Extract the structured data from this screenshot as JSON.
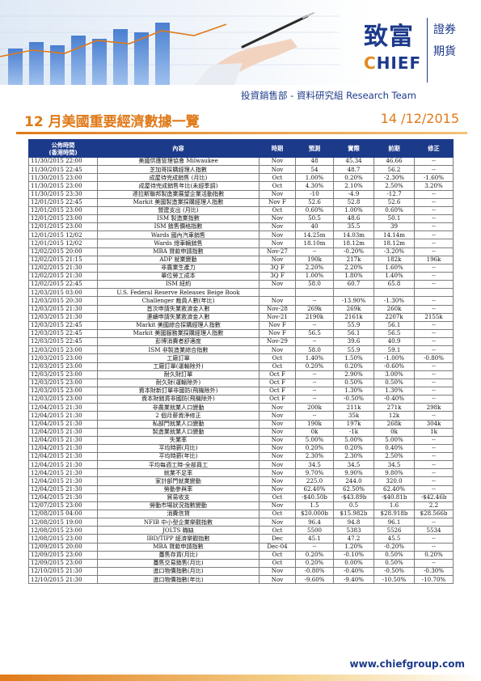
{
  "brand": {
    "logo_zh": "致富",
    "logo_en": "CHIEF",
    "logo_en_first": "C",
    "logo_en_rest": "HIEF",
    "side_line1": "證券",
    "side_line2": "期貨"
  },
  "header": {
    "department": "投資銷售部 - 資料研究組 Research Team",
    "title": "12 月美國重要經濟數據一覽",
    "date": "14 /12/2015"
  },
  "table": {
    "headers": {
      "time_line1": "公佈時間",
      "time_line2": "(香港時間)",
      "indicator": "內容",
      "period": "時期",
      "forecast": "預測",
      "actual": "實際",
      "previous": "前期",
      "revised": "修正"
    },
    "rows": [
      [
        "11/30/2015 22:00",
        "美國供應管理協會 Milwaukee",
        "Nov",
        "48",
        "45.34",
        "46.66",
        "--"
      ],
      [
        "11/30/2015 22:45",
        "芝加哥採購經理人指數",
        "Nov",
        "54",
        "48.7",
        "56.2",
        "--"
      ],
      [
        "11/30/2015 23:00",
        "成屋待完成銷售 (月比)",
        "Oct",
        "1.00%",
        "0.20%",
        "-2.30%",
        "-1.60%"
      ],
      [
        "11/30/2015 23:00",
        "成屋待完成銷售年比(未經季調)",
        "Oct",
        "4.30%",
        "2.10%",
        "2.50%",
        "3.20%"
      ],
      [
        "11/30/2015 23:30",
        "達拉斯聯邦製造業展望企業活動指數",
        "Nov",
        "-10",
        "-4.9",
        "-12.7",
        "--"
      ],
      [
        "12/01/2015 22:45",
        "Markit 美國製造業採購經理人指數",
        "Nov F",
        "52.6",
        "52.8",
        "52.6",
        "--"
      ],
      [
        "12/01/2015 23:00",
        "營建支出 (月比)",
        "Oct",
        "0.60%",
        "1.00%",
        "0.60%",
        "--"
      ],
      [
        "12/01/2015 23:00",
        "ISM 製造業指數",
        "Nov",
        "50.5",
        "48.6",
        "50.1",
        "--"
      ],
      [
        "12/01/2015 23:00",
        "ISM 銷售價格指數",
        "Nov",
        "40",
        "35.5",
        "39",
        "--"
      ],
      [
        "12/01/2015 12/02",
        "Wards 國內汽車銷售",
        "Nov",
        "14.25m",
        "14.03m",
        "14.14m",
        "--"
      ],
      [
        "12/01/2015 12/02",
        "Wards 總車輛銷售",
        "Nov",
        "18.10m",
        "18.12m",
        "18.12m",
        "--"
      ],
      [
        "12/02/2015 20:00",
        "MBA 貸款申請指數",
        "Nov-27",
        "--",
        "-0.20%",
        "-3.20%",
        "--"
      ],
      [
        "12/02/2015 21:15",
        "ADP 就業變動",
        "Nov",
        "190k",
        "217k",
        "182k",
        "196k"
      ],
      [
        "12/02/2015 21:30",
        "非農業生產力",
        "3Q F",
        "2.20%",
        "2.20%",
        "1.60%",
        "--"
      ],
      [
        "12/02/2015 21:30",
        "單位勞工成本",
        "3Q F",
        "1.00%",
        "1.80%",
        "1.40%",
        "--"
      ],
      [
        "12/02/2015 22:45",
        "ISM 紐約",
        "Nov",
        "58.0",
        "60.7",
        "65.8",
        "--"
      ],
      [
        "12/03/2015 03:00",
        "U.S. Federal Reserve Releases Beige Book",
        "",
        "",
        "",
        "",
        ""
      ],
      [
        "12/03/2015 20:30",
        "Challenger 裁員人數(年比)",
        "Nov",
        "--",
        "-13.90%",
        "-1.30%",
        "--"
      ],
      [
        "12/03/2015 21:30",
        "首次申請失業救濟金人數",
        "Nov-28",
        "269k",
        "269k",
        "260k",
        "--"
      ],
      [
        "12/03/2015 21:30",
        "連續申請失業救濟金人數",
        "Nov-21",
        "2190k",
        "2161k",
        "2207k",
        "2155k"
      ],
      [
        "12/03/2015 22:45",
        "Markit 美國綜合採購經理人指數",
        "Nov F",
        "--",
        "55.9",
        "56.1",
        "--"
      ],
      [
        "12/03/2015 22:45",
        "Markit 美國服務業採購經理人指數",
        "Nov F",
        "56.5",
        "56.1",
        "56.5",
        "--"
      ],
      [
        "12/03/2015 22:45",
        "彭博消費者舒適度",
        "Nov-29",
        "--",
        "39.6",
        "40.9",
        "--"
      ],
      [
        "12/03/2015 23:00",
        "ISM 非製造業綜合指數",
        "Nov",
        "58.0",
        "55.9",
        "59.1",
        "--"
      ],
      [
        "12/03/2015 23:00",
        "工廠訂單",
        "Oct",
        "1.40%",
        "1.50%",
        "-1.00%",
        "-0.80%"
      ],
      [
        "12/03/2015 23:00",
        "工廠訂單(運輸除外)",
        "Oct",
        "0.20%",
        "0.20%",
        "-0.60%",
        "--"
      ],
      [
        "12/03/2015 23:00",
        "耐久財訂單",
        "Oct F",
        "--",
        "2.90%",
        "3.00%",
        "--"
      ],
      [
        "12/03/2015 23:00",
        "耐久財(運輸除外)",
        "Oct F",
        "--",
        "0.50%",
        "0.50%",
        "--"
      ],
      [
        "12/03/2015 23:00",
        "資本財新訂單非國防(飛機除外)",
        "Oct F",
        "--",
        "1.30%",
        "1.30%",
        "--"
      ],
      [
        "12/03/2015 23:00",
        "資本財銷貨非國防(飛機除外)",
        "Oct F",
        "--",
        "-0.50%",
        "-0.40%",
        "--"
      ],
      [
        "12/04/2015 21:30",
        "非農業就業人口變動",
        "Nov",
        "200k",
        "211k",
        "271k",
        "298k"
      ],
      [
        "12/04/2015 21:30",
        "2 個月薪資淨修正",
        "Nov",
        "--",
        "35k",
        "12k",
        "--"
      ],
      [
        "12/04/2015 21:30",
        "私部門就業人口變動",
        "Nov",
        "190k",
        "197k",
        "268k",
        "304k"
      ],
      [
        "12/04/2015 21:30",
        "製造業就業人口變動",
        "Nov",
        "0k",
        "-1k",
        "0k",
        "1k"
      ],
      [
        "12/04/2015 21:30",
        "失業率",
        "Nov",
        "5.00%",
        "5.00%",
        "5.00%",
        "--"
      ],
      [
        "12/04/2015 21:30",
        "平均時薪(月比)",
        "Nov",
        "0.20%",
        "0.20%",
        "0.40%",
        "--"
      ],
      [
        "12/04/2015 21:30",
        "平均時薪(年比)",
        "Nov",
        "2.30%",
        "2.30%",
        "2.50%",
        "--"
      ],
      [
        "12/04/2015 21:30",
        "平均每週工時-全部員工",
        "Nov",
        "34.5",
        "34.5",
        "34.5",
        "--"
      ],
      [
        "12/04/2015 21:30",
        "就業不足率",
        "Nov",
        "9.70%",
        "9.90%",
        "9.80%",
        "--"
      ],
      [
        "12/04/2015 21:30",
        "家計部門就業變動",
        "Nov",
        "225.0",
        "244.0",
        "320.0",
        "--"
      ],
      [
        "12/04/2015 21:30",
        "勞動參與率",
        "Nov",
        "62.40%",
        "62.50%",
        "62.40%",
        "--"
      ],
      [
        "12/04/2015 21:30",
        "貿易收支",
        "Oct",
        "-$40.50b",
        "-$43.89b",
        "-$40.81b",
        "-$42.46b"
      ],
      [
        "12/07/2015 23:00",
        "勞動市場狀況指數變動",
        "Nov",
        "1.5",
        "0.5",
        "1.6",
        "2.2"
      ],
      [
        "12/08/2015 04:00",
        "消費信貸",
        "Oct",
        "$20.000b",
        "$15.982b",
        "$28.918b",
        "$28.566b"
      ],
      [
        "12/08/2015 19:00",
        "NFIB 中小型企業樂觀指數",
        "Nov",
        "96.4",
        "94.8",
        "96.1",
        "--"
      ],
      [
        "12/08/2015 23:00",
        "JOLTS 職缺",
        "Oct",
        "5500",
        "5383",
        "5526",
        "5534"
      ],
      [
        "12/08/2015 23:00",
        "IBD/TIPP 經濟樂觀指數",
        "Dec",
        "45.1",
        "47.2",
        "45.5",
        "--"
      ],
      [
        "12/09/2015 20:00",
        "MBA 貸款申請指數",
        "Dec-04",
        "--",
        "1.20%",
        "-0.20%",
        "--"
      ],
      [
        "12/09/2015 23:00",
        "躉售存貨(月比)",
        "Oct",
        "0.20%",
        "-0.10%",
        "0.50%",
        "0.20%"
      ],
      [
        "12/09/2015 23:00",
        "躉售交易銷售(月比)",
        "Oct",
        "0.20%",
        "0.00%",
        "0.50%",
        "--"
      ],
      [
        "12/10/2015 21:30",
        "進口物價指數(月比)",
        "Nov",
        "-0.80%",
        "-0.40%",
        "-0.50%",
        "-0.30%"
      ],
      [
        "12/10/2015 21:30",
        "進口物價指數(年比)",
        "Nov",
        "-9.60%",
        "-9.40%",
        "-10.50%",
        "-10.70%"
      ]
    ]
  },
  "footer": {
    "url": "www.chiefgroup.com"
  },
  "colors": {
    "brand_blue": "#1c3a8a",
    "accent_orange": "#e07a1a"
  }
}
